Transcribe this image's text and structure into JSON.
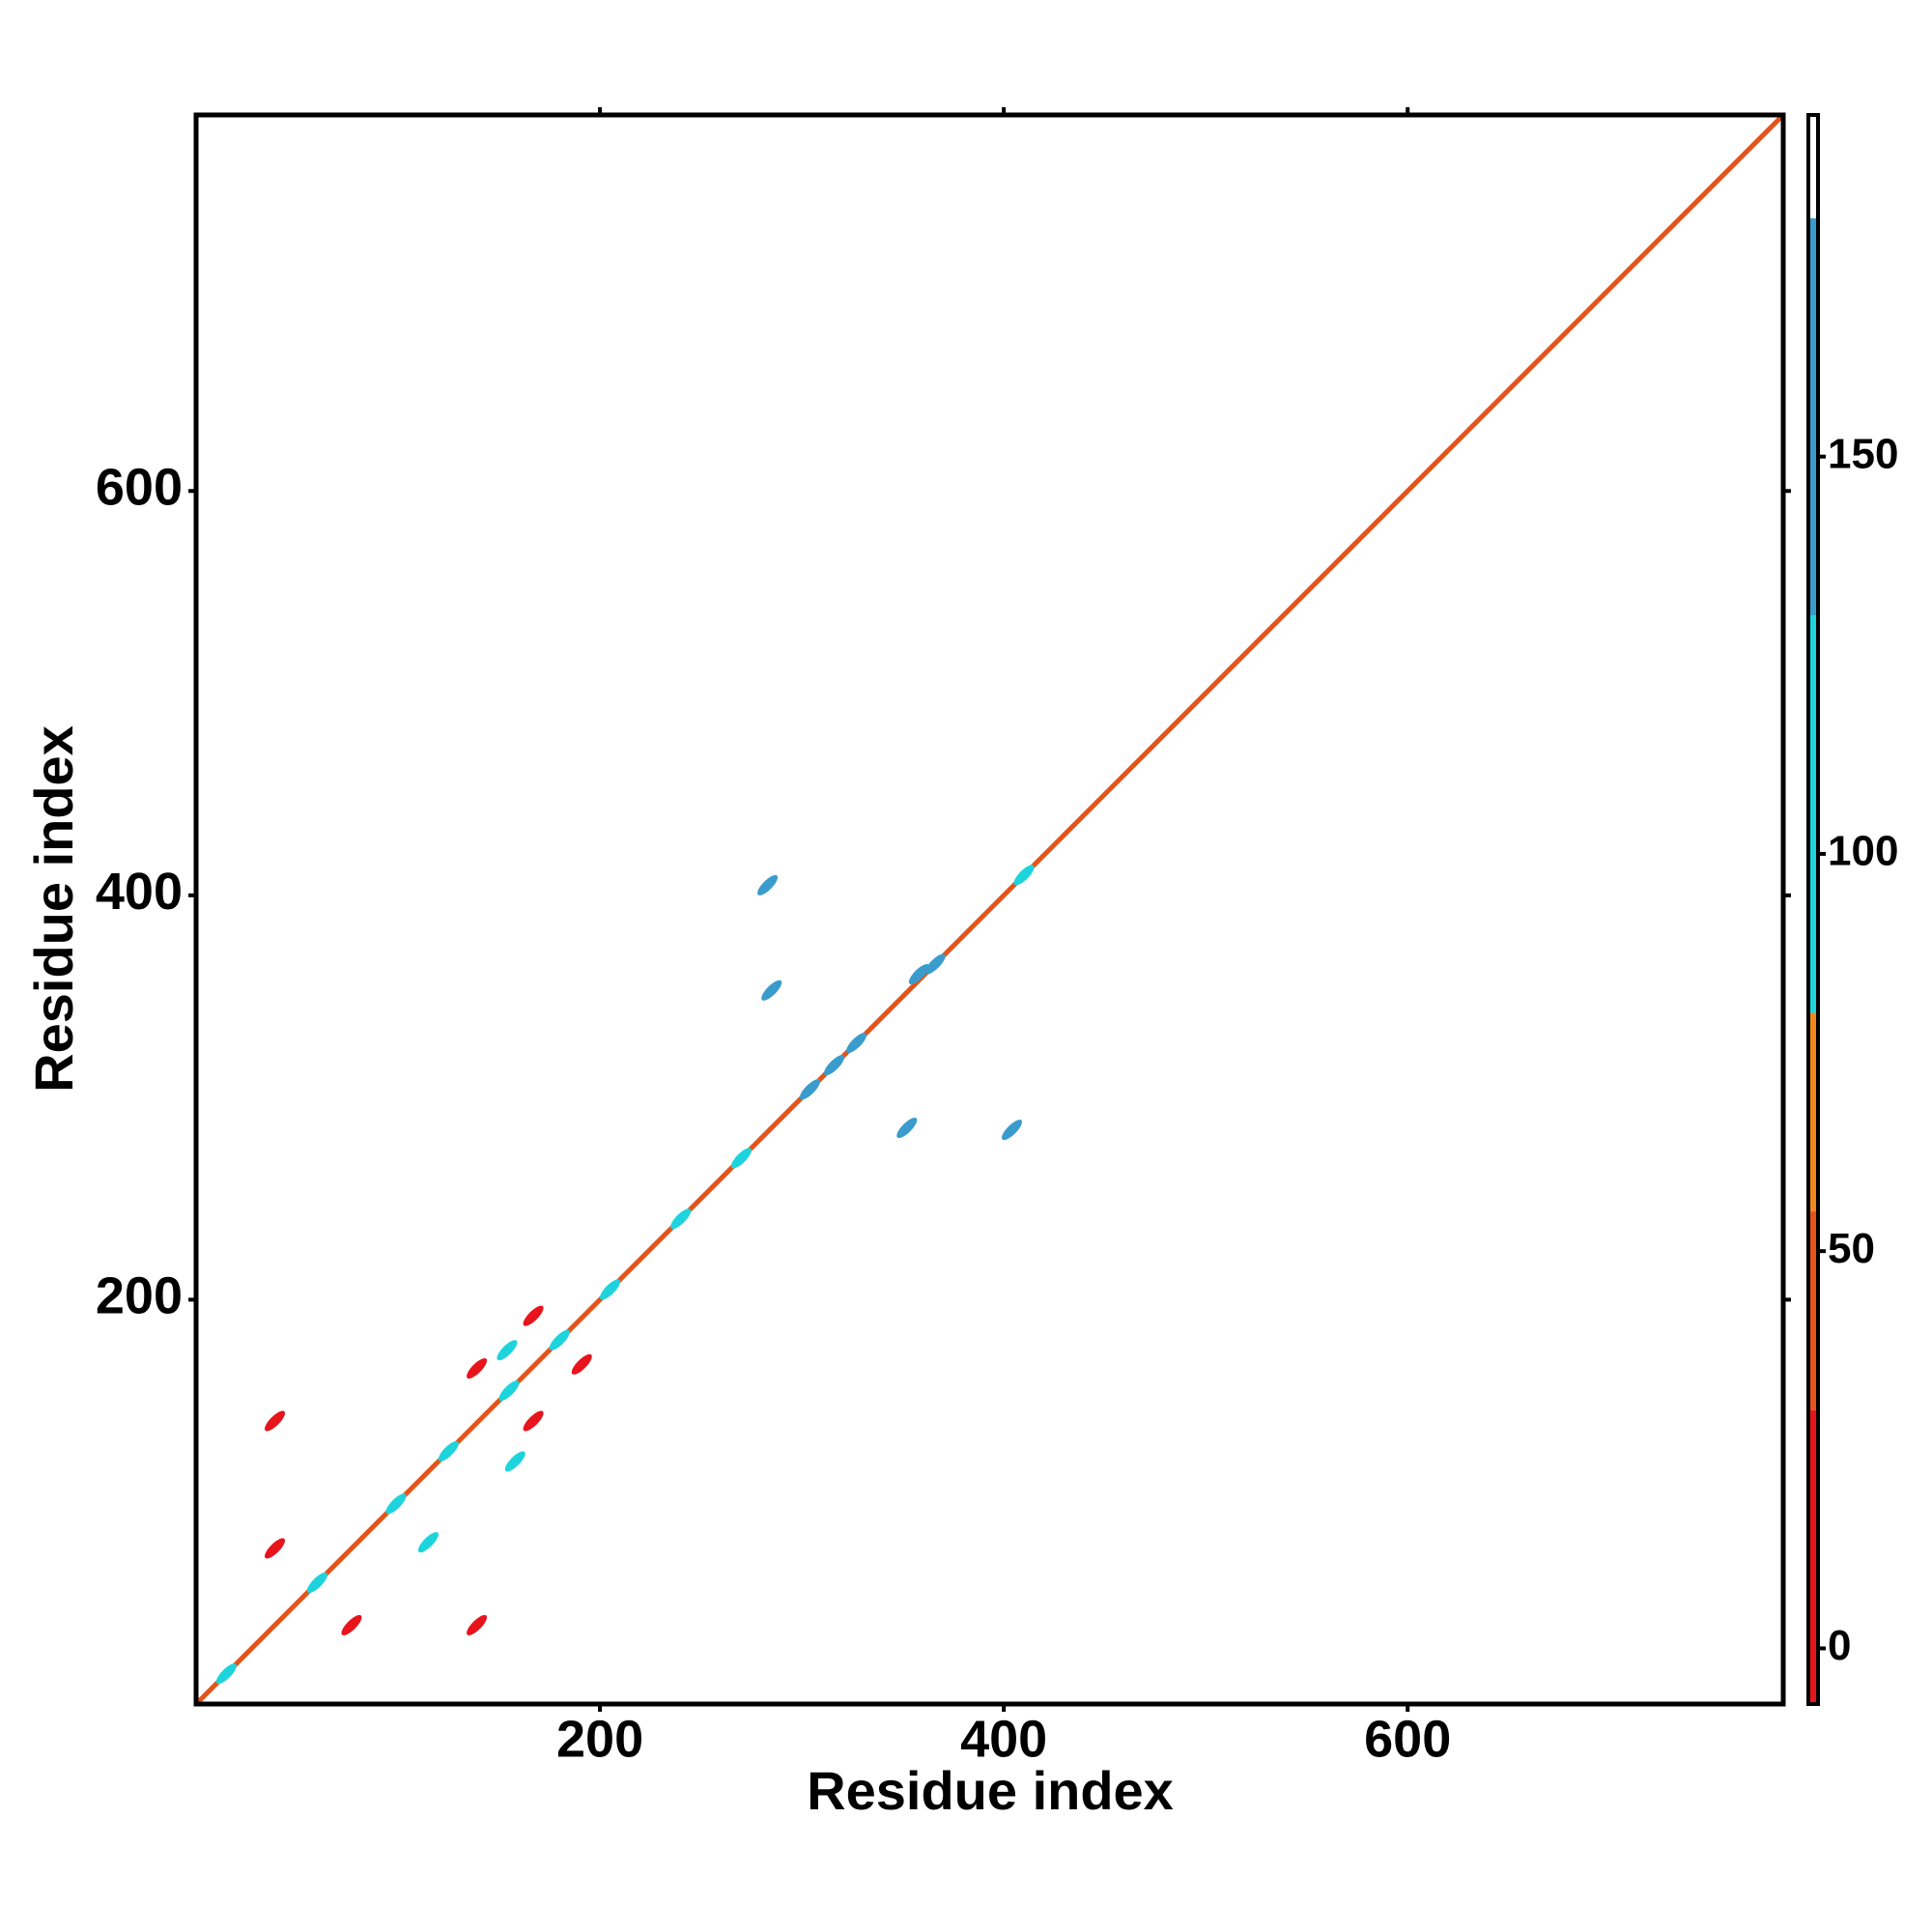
{
  "chart_data": {
    "type": "contact-map",
    "x_label": "Residue index",
    "y_label": "Residue index",
    "xlim": [
      0,
      786
    ],
    "ylim": [
      0,
      786
    ],
    "xticks": [
      200,
      400,
      600
    ],
    "yticks": [
      200,
      400,
      600
    ],
    "diagonal_value": 50,
    "colorbar": {
      "lim": [
        -7,
        193
      ],
      "ticks": [
        0,
        50,
        100,
        150
      ],
      "bands": [
        -7,
        30,
        55,
        80,
        130,
        180,
        193
      ],
      "colors": [
        "#e8141c",
        "#e4541a",
        "#f0881e",
        "#1ed4dc",
        "#3a9ccc",
        "#ffffff"
      ]
    },
    "points": [
      {
        "x": 39,
        "y": 140,
        "value": 10
      },
      {
        "x": 39,
        "y": 77,
        "value": 10
      },
      {
        "x": 77,
        "y": 39,
        "value": 10
      },
      {
        "x": 139,
        "y": 39,
        "value": 10
      },
      {
        "x": 139,
        "y": 166,
        "value": 10
      },
      {
        "x": 167,
        "y": 192,
        "value": 10
      },
      {
        "x": 167,
        "y": 140,
        "value": 10
      },
      {
        "x": 191,
        "y": 168,
        "value": 10
      },
      {
        "x": 283,
        "y": 405,
        "value": 140
      },
      {
        "x": 285,
        "y": 353,
        "value": 140
      },
      {
        "x": 352,
        "y": 285,
        "value": 140
      },
      {
        "x": 404,
        "y": 284,
        "value": 140
      },
      {
        "x": 304,
        "y": 304,
        "value": 140
      },
      {
        "x": 316,
        "y": 316,
        "value": 140
      },
      {
        "x": 327,
        "y": 327,
        "value": 140
      },
      {
        "x": 358,
        "y": 361,
        "value": 140
      },
      {
        "x": 366,
        "y": 366,
        "value": 140
      },
      {
        "x": 15,
        "y": 15,
        "value": 90
      },
      {
        "x": 60,
        "y": 60,
        "value": 90
      },
      {
        "x": 99,
        "y": 99,
        "value": 90
      },
      {
        "x": 125,
        "y": 125,
        "value": 90
      },
      {
        "x": 155,
        "y": 155,
        "value": 90
      },
      {
        "x": 180,
        "y": 180,
        "value": 90
      },
      {
        "x": 205,
        "y": 205,
        "value": 90
      },
      {
        "x": 240,
        "y": 240,
        "value": 90
      },
      {
        "x": 270,
        "y": 270,
        "value": 90
      },
      {
        "x": 410,
        "y": 410,
        "value": 90
      },
      {
        "x": 115,
        "y": 80,
        "value": 90
      },
      {
        "x": 154,
        "y": 175,
        "value": 90
      },
      {
        "x": 158,
        "y": 120,
        "value": 90
      }
    ]
  }
}
